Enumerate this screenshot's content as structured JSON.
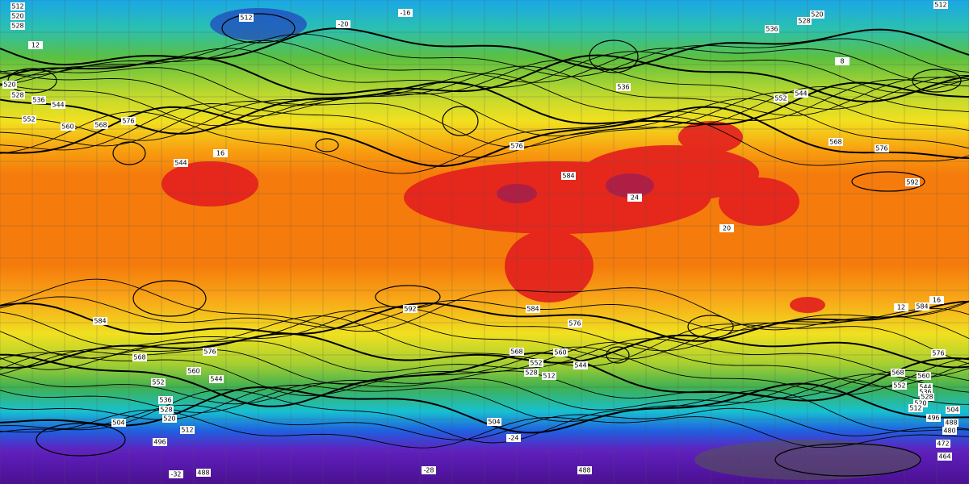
{
  "map": {
    "contour_labels": [
      "512",
      "520",
      "528",
      "512",
      "520",
      "528",
      "536",
      "512",
      "520",
      "528",
      "536",
      "544",
      "552",
      "560",
      "568",
      "576",
      "544",
      "576",
      "584",
      "592",
      "568",
      "576",
      "552",
      "544",
      "536",
      "592",
      "584",
      "576",
      "584",
      "584",
      "576",
      "568",
      "560",
      "544",
      "552",
      "536",
      "528",
      "520",
      "512",
      "504",
      "496",
      "488",
      "568",
      "560",
      "552",
      "544",
      "528",
      "512",
      "504",
      "488",
      "568",
      "560",
      "552",
      "544",
      "536",
      "528",
      "520",
      "512",
      "504",
      "496",
      "488",
      "480",
      "472",
      "464",
      "576"
    ],
    "temperature_labels": [
      "-16",
      "-20",
      "-24",
      "-28",
      "-32",
      "12",
      "16",
      "20",
      "24",
      "12",
      "16",
      "8"
    ]
  }
}
